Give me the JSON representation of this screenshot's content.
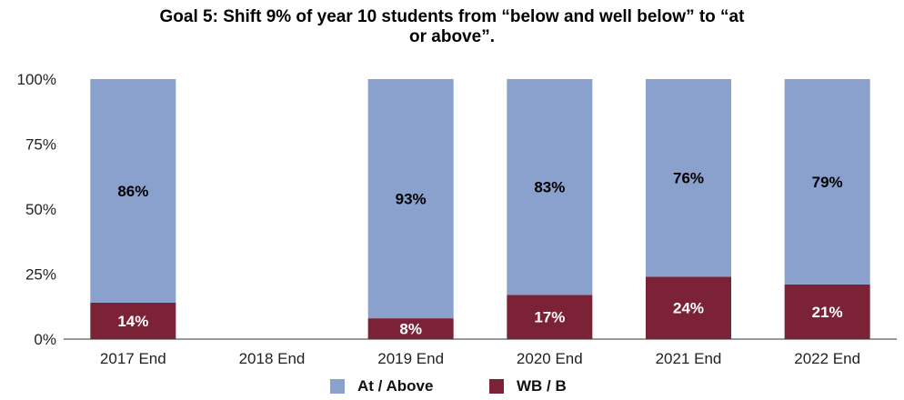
{
  "chart_data": {
    "type": "bar",
    "stacked": true,
    "percent_stacked": true,
    "title": "Goal 5: Shift 9% of year 10 students from “below and well below” to “at or above”.",
    "title_lines": [
      "Goal 5: Shift 9% of year 10 students from “below and well below” to “at",
      "or above”."
    ],
    "xlabel": "",
    "ylabel": "",
    "categories": [
      "2017 End",
      "2018 End",
      "2019 End",
      "2020 End",
      "2021 End",
      "2022 End"
    ],
    "series": [
      {
        "name": "WB / B",
        "color": "#7b2237",
        "label_color": "#ffffff",
        "values": [
          14,
          null,
          8,
          17,
          24,
          21
        ],
        "labels": [
          "14%",
          "",
          "8%",
          "17%",
          "24%",
          "21%"
        ]
      },
      {
        "name": "At / Above",
        "color": "#8aa0cd",
        "label_color": "#000000",
        "values": [
          86,
          null,
          93,
          83,
          76,
          79
        ],
        "labels": [
          "86%",
          "",
          "93%",
          "83%",
          "76%",
          "79%"
        ]
      }
    ],
    "legend_order": [
      "At / Above",
      "WB / B"
    ],
    "ylim": [
      0,
      100
    ],
    "yticks": [
      0,
      25,
      50,
      75,
      100
    ],
    "ytick_labels": [
      "0%",
      "25%",
      "50%",
      "75%",
      "100%"
    ],
    "grid": false,
    "legend_position": "bottom"
  }
}
